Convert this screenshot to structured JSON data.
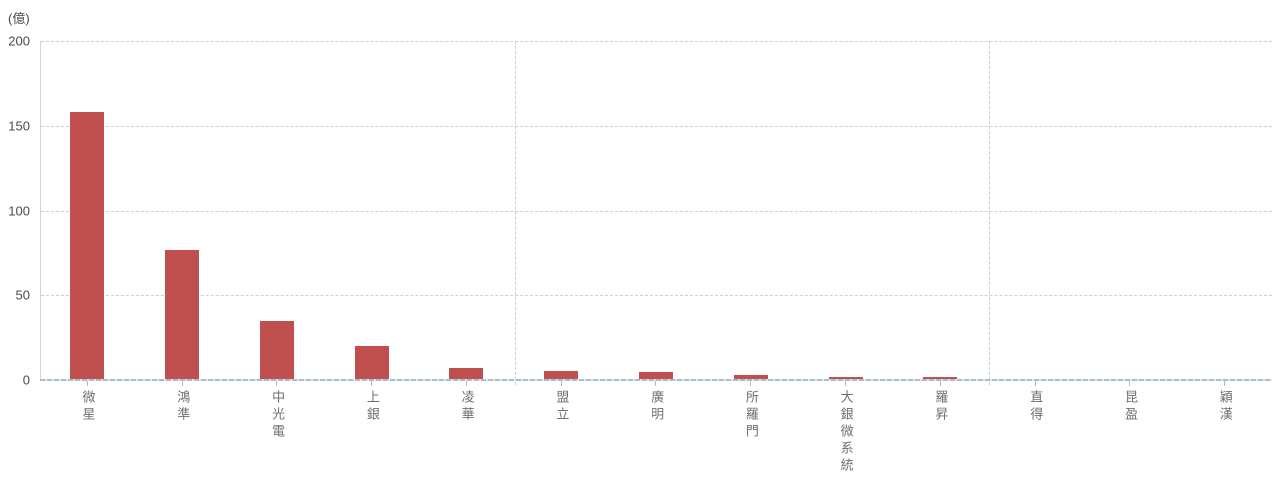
{
  "chart": {
    "unit_label": "(億)"
  },
  "chart_data": {
    "type": "bar",
    "title": "",
    "unit_label": "(億)",
    "categories": [
      "微星",
      "鴻準",
      "中光電",
      "上銀",
      "凌華",
      "盟立",
      "廣明",
      "所羅門",
      "大銀微系統",
      "羅昇",
      "直得",
      "昆盈",
      "穎漢"
    ],
    "values": [
      158,
      77,
      35,
      20,
      7,
      5.5,
      4.5,
      3,
      2,
      2,
      0.3,
      0.2,
      0.1
    ],
    "xlabel": "",
    "ylabel": "(億)",
    "yticks": [
      0,
      50,
      100,
      150,
      200
    ],
    "ylim": [
      0,
      200
    ],
    "grid": "dashed horizontal gridlines, dashed vertical group separators",
    "legend": "none",
    "group_separators_after": [
      5,
      10
    ],
    "bar_color": "#c05050"
  },
  "colors": {
    "bar": "#c05050",
    "gridline": "#cfcfcf",
    "axis_line": "#a9bdca",
    "tick_text": "#4a4a4a",
    "category_text": "#707070",
    "background": "#ffffff"
  }
}
